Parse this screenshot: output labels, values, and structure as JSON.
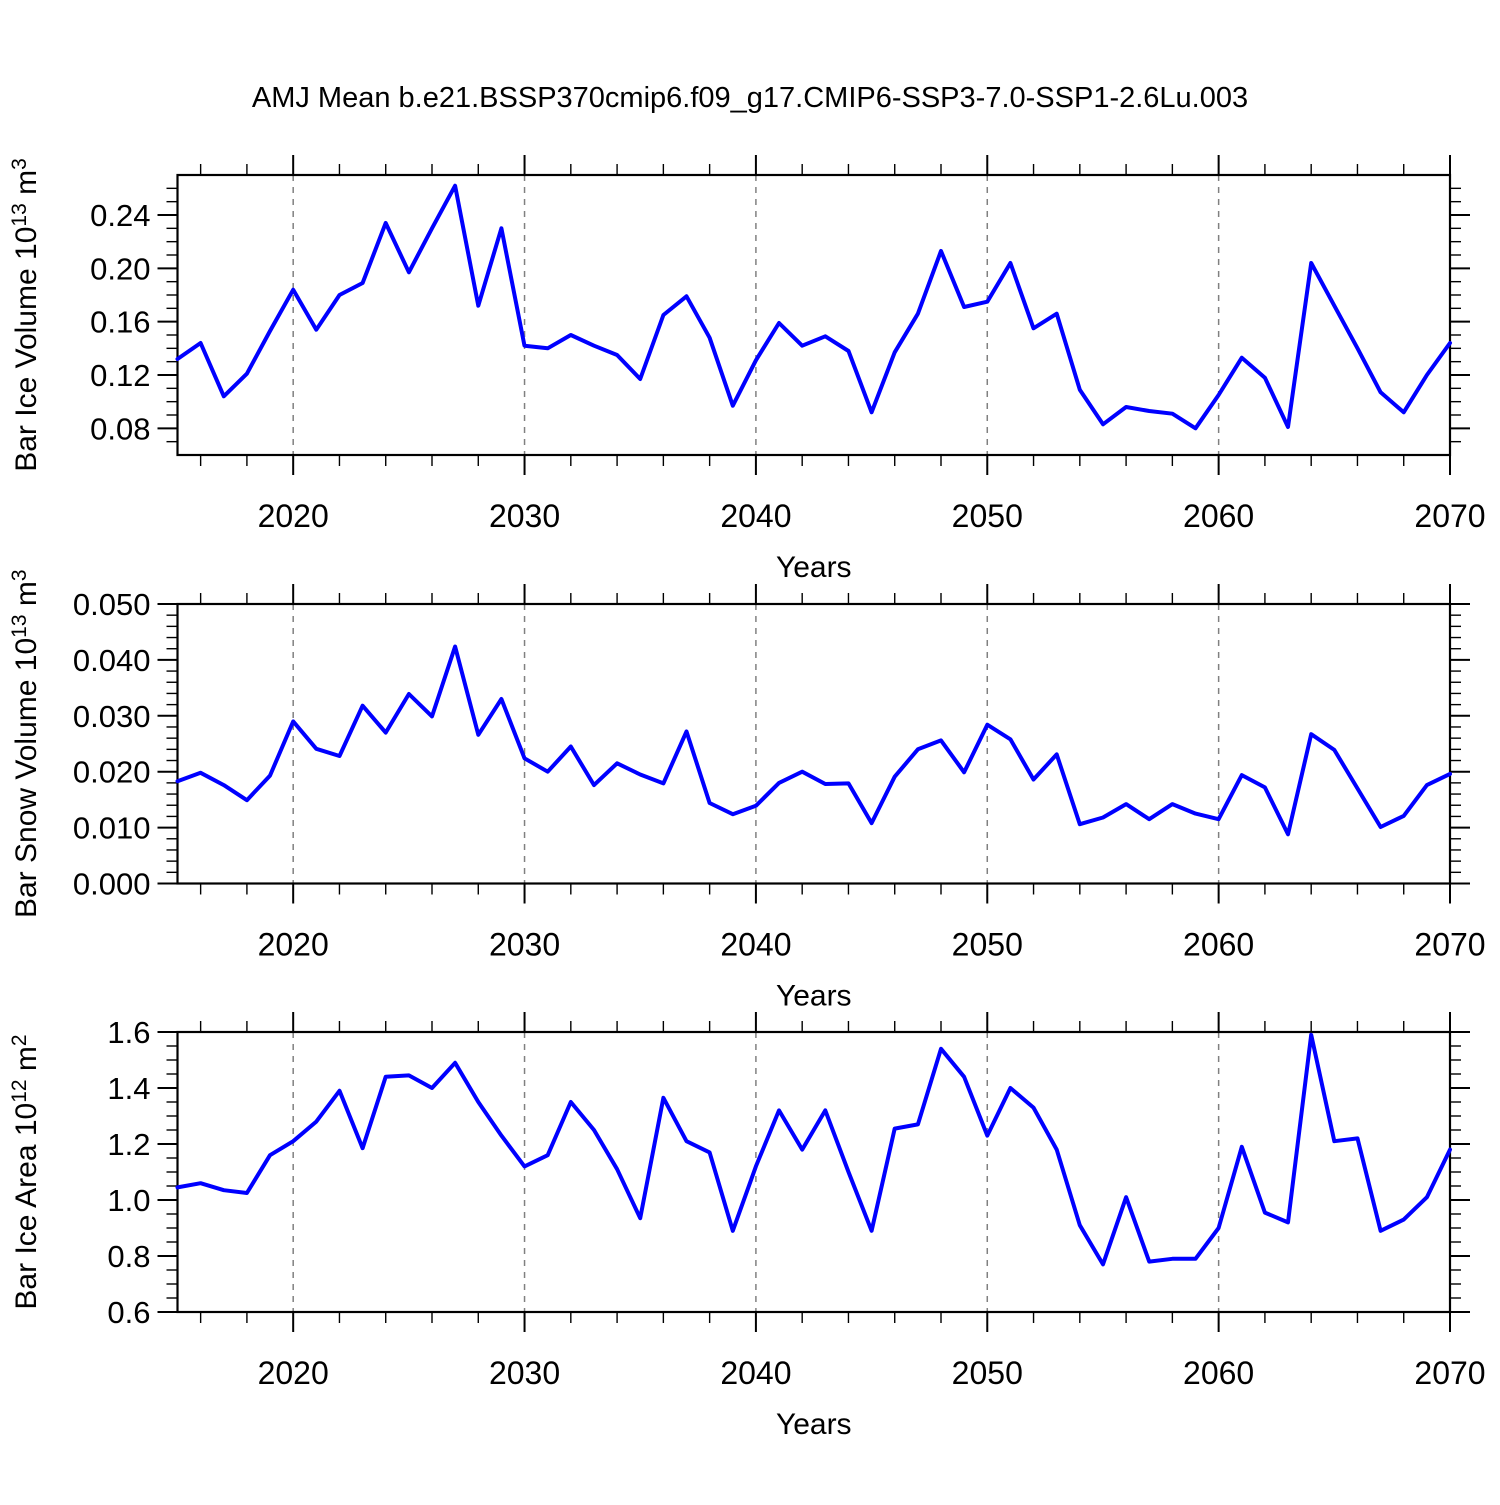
{
  "title": "AMJ Mean b.e21.BSSP370cmip6.f09_g17.CMIP6-SSP3-7.0-SSP1-2.6Lu.003",
  "chart_data": {
    "type": "line",
    "line_color": "#0000FF",
    "gridline_color": "#808080",
    "axis_color": "#000000",
    "xlabel": "Years",
    "xlim": [
      2015,
      2070
    ],
    "x_major_ticks": [
      2020,
      2030,
      2040,
      2050,
      2060,
      2070
    ],
    "x_major_tick_labels": [
      "2020",
      "2030",
      "2040",
      "2050",
      "2060",
      "2070"
    ],
    "x_minor_step": 2,
    "gridline_years": [
      2020,
      2030,
      2040,
      2050,
      2060
    ],
    "years": [
      2015,
      2016,
      2017,
      2018,
      2019,
      2020,
      2021,
      2022,
      2023,
      2024,
      2025,
      2026,
      2027,
      2028,
      2029,
      2030,
      2031,
      2032,
      2033,
      2034,
      2035,
      2036,
      2037,
      2038,
      2039,
      2040,
      2041,
      2042,
      2043,
      2044,
      2045,
      2046,
      2047,
      2048,
      2049,
      2050,
      2051,
      2052,
      2053,
      2054,
      2055,
      2056,
      2057,
      2058,
      2059,
      2060,
      2061,
      2062,
      2063,
      2064,
      2065,
      2066,
      2067,
      2068,
      2069,
      2070
    ],
    "panels": [
      {
        "name": "bar-ice-volume",
        "ylabel_text": "Bar Ice Volume 10^13 m^3",
        "ylabel_segments": [
          {
            "t": "Bar Ice Volume 10"
          },
          {
            "t": "13",
            "sup": true
          },
          {
            "t": " m"
          },
          {
            "t": "3",
            "sup": true
          }
        ],
        "ylim": [
          0.06,
          0.27
        ],
        "ytick_values": [
          0.08,
          0.12,
          0.16,
          0.2,
          0.24
        ],
        "ytick_labels": [
          "0.08",
          "0.12",
          "0.16",
          "0.20",
          "0.24"
        ],
        "y_minor_step": 0.01,
        "values": [
          0.132,
          0.144,
          0.104,
          0.121,
          0.153,
          0.184,
          0.154,
          0.18,
          0.189,
          0.234,
          0.197,
          0.23,
          0.262,
          0.172,
          0.23,
          0.142,
          0.14,
          0.15,
          0.142,
          0.135,
          0.117,
          0.165,
          0.179,
          0.148,
          0.097,
          0.131,
          0.159,
          0.142,
          0.149,
          0.138,
          0.092,
          0.137,
          0.166,
          0.213,
          0.171,
          0.175,
          0.204,
          0.155,
          0.166,
          0.109,
          0.083,
          0.096,
          0.093,
          0.091,
          0.08,
          0.105,
          0.133,
          0.118,
          0.081,
          0.204,
          0.172,
          0.14,
          0.107,
          0.092,
          0.12,
          0.144
        ]
      },
      {
        "name": "bar-snow-volume",
        "ylabel_text": "Bar Snow Volume 10^13 m^3",
        "ylabel_segments": [
          {
            "t": "Bar Snow Volume 10"
          },
          {
            "t": "13",
            "sup": true
          },
          {
            "t": " m"
          },
          {
            "t": "3",
            "sup": true
          }
        ],
        "ylim": [
          0.0,
          0.05
        ],
        "ytick_values": [
          0.0,
          0.01,
          0.02,
          0.03,
          0.04,
          0.05
        ],
        "ytick_labels": [
          "0.000",
          "0.010",
          "0.020",
          "0.030",
          "0.040",
          "0.050"
        ],
        "y_minor_step": 0.002,
        "values": [
          0.0183,
          0.0198,
          0.0176,
          0.0149,
          0.0193,
          0.029,
          0.0241,
          0.0228,
          0.0318,
          0.027,
          0.0339,
          0.0299,
          0.0424,
          0.0266,
          0.033,
          0.0224,
          0.02,
          0.0245,
          0.0176,
          0.0215,
          0.0195,
          0.0179,
          0.0272,
          0.0144,
          0.0124,
          0.0139,
          0.018,
          0.02,
          0.0178,
          0.0179,
          0.0108,
          0.0191,
          0.024,
          0.0256,
          0.0199,
          0.0284,
          0.0258,
          0.0186,
          0.0231,
          0.0106,
          0.0118,
          0.0142,
          0.0115,
          0.0142,
          0.0125,
          0.0115,
          0.0194,
          0.0172,
          0.0088,
          0.0267,
          0.0239,
          0.017,
          0.0101,
          0.0121,
          0.0176,
          0.0196
        ]
      },
      {
        "name": "bar-ice-area",
        "ylabel_text": "Bar Ice Area 10^12 m^2",
        "ylabel_segments": [
          {
            "t": "Bar Ice Area 10"
          },
          {
            "t": "12",
            "sup": true
          },
          {
            "t": " m"
          },
          {
            "t": "2",
            "sup": true
          }
        ],
        "ylim": [
          0.6,
          1.6
        ],
        "ytick_values": [
          0.6,
          0.8,
          1.0,
          1.2,
          1.4,
          1.6
        ],
        "ytick_labels": [
          "0.6",
          "0.8",
          "1.0",
          "1.2",
          "1.4",
          "1.6"
        ],
        "y_minor_step": 0.05,
        "values": [
          1.045,
          1.06,
          1.035,
          1.025,
          1.16,
          1.21,
          1.28,
          1.39,
          1.185,
          1.44,
          1.445,
          1.4,
          1.49,
          1.35,
          1.23,
          1.12,
          1.16,
          1.35,
          1.25,
          1.11,
          0.935,
          1.365,
          1.21,
          1.17,
          0.89,
          1.12,
          1.32,
          1.18,
          1.32,
          1.1,
          0.89,
          1.255,
          1.27,
          1.54,
          1.44,
          1.23,
          1.4,
          1.33,
          1.18,
          0.91,
          0.77,
          1.01,
          0.78,
          0.79,
          0.79,
          0.9,
          1.19,
          0.955,
          0.92,
          1.59,
          1.21,
          1.22,
          0.89,
          0.93,
          1.01,
          1.18
        ]
      }
    ]
  }
}
